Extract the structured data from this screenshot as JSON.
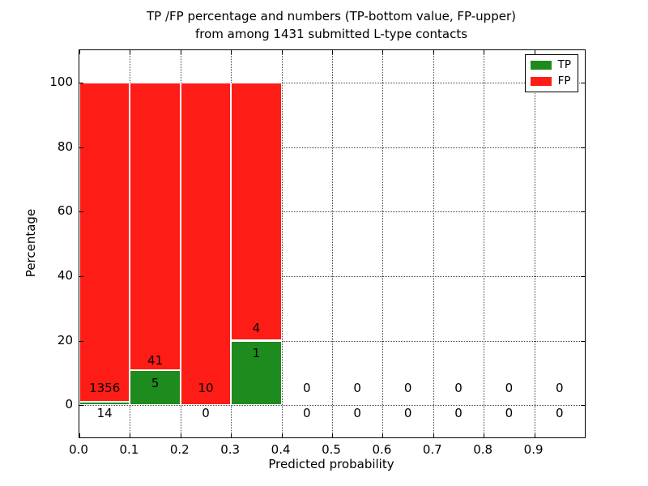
{
  "figure": {
    "title_line1": "TP /FP percentage and numbers (TP-bottom value, FP-upper)",
    "title_line2": "from among 1431 submitted L-type contacts"
  },
  "axes": {
    "xlabel": "Predicted probability",
    "ylabel": "Percentage",
    "x_tick_values": [
      0.0,
      0.1,
      0.2,
      0.3,
      0.4,
      0.5,
      0.6,
      0.7,
      0.8,
      0.9
    ],
    "x_tick_labels": [
      "0.0",
      "0.1",
      "0.2",
      "0.3",
      "0.4",
      "0.5",
      "0.6",
      "0.7",
      "0.8",
      "0.9"
    ],
    "y_tick_values": [
      0,
      20,
      40,
      60,
      80,
      100
    ],
    "y_tick_labels": [
      "0",
      "20",
      "40",
      "60",
      "80",
      "100"
    ],
    "xlim": [
      0,
      1
    ],
    "ylim": [
      -10,
      110
    ],
    "grid_style": "dotted"
  },
  "chart_data": {
    "type": "bar",
    "stacked": true,
    "title": "TP /FP percentage and numbers (TP-bottom value, FP-upper) from among 1431 submitted L-type contacts",
    "xlabel": "Predicted probability",
    "ylabel": "Percentage",
    "total_contacts": 1431,
    "bin_width": 0.1,
    "bin_starts": [
      0.0,
      0.1,
      0.2,
      0.3,
      0.4,
      0.5,
      0.6,
      0.7,
      0.8,
      0.9
    ],
    "series": [
      {
        "name": "TP",
        "color": "#1e8b1e",
        "counts": [
          14,
          5,
          0,
          1,
          0,
          0,
          0,
          0,
          0,
          0
        ],
        "pct": [
          1.02,
          10.87,
          0,
          20,
          0,
          0,
          0,
          0,
          0,
          0
        ]
      },
      {
        "name": "FP",
        "color": "#fe1c17",
        "counts": [
          1356,
          41,
          10,
          4,
          0,
          0,
          0,
          0,
          0,
          0
        ],
        "pct": [
          98.98,
          89.13,
          100,
          80,
          0,
          0,
          0,
          0,
          0,
          0
        ]
      }
    ],
    "annotations": [
      {
        "x": 0.05,
        "y": 5.2,
        "text": "1356"
      },
      {
        "x": 0.05,
        "y": -2.4,
        "text": "14"
      },
      {
        "x": 0.15,
        "y": 13.9,
        "text": "41"
      },
      {
        "x": 0.15,
        "y": 6.7,
        "text": "5"
      },
      {
        "x": 0.25,
        "y": 5.2,
        "text": "10"
      },
      {
        "x": 0.25,
        "y": -2.4,
        "text": "0"
      },
      {
        "x": 0.35,
        "y": 23.9,
        "text": "4"
      },
      {
        "x": 0.35,
        "y": 16.0,
        "text": "1"
      },
      {
        "x": 0.45,
        "y": 5.2,
        "text": "0"
      },
      {
        "x": 0.45,
        "y": -2.4,
        "text": "0"
      },
      {
        "x": 0.55,
        "y": 5.2,
        "text": "0"
      },
      {
        "x": 0.55,
        "y": -2.4,
        "text": "0"
      },
      {
        "x": 0.65,
        "y": 5.2,
        "text": "0"
      },
      {
        "x": 0.65,
        "y": -2.4,
        "text": "0"
      },
      {
        "x": 0.75,
        "y": 5.2,
        "text": "0"
      },
      {
        "x": 0.75,
        "y": -2.4,
        "text": "0"
      },
      {
        "x": 0.85,
        "y": 5.2,
        "text": "0"
      },
      {
        "x": 0.85,
        "y": -2.4,
        "text": "0"
      },
      {
        "x": 0.95,
        "y": 5.2,
        "text": "0"
      },
      {
        "x": 0.95,
        "y": -2.4,
        "text": "0"
      }
    ],
    "legend": {
      "position": "upper right",
      "entries": [
        {
          "label": "TP",
          "color": "#1e8b1e"
        },
        {
          "label": "FP",
          "color": "#fe1c17"
        }
      ]
    }
  }
}
